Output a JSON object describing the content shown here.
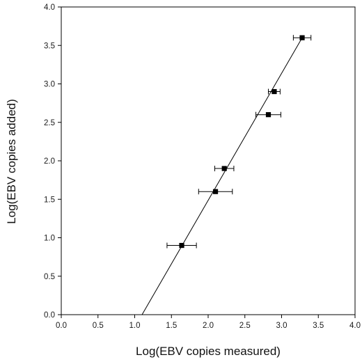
{
  "chart_data": {
    "type": "scatter",
    "title": "",
    "xlabel": "Log(EBV copies measured)",
    "ylabel": "Log(EBV copies added)",
    "xlim": [
      0.0,
      4.0
    ],
    "ylim": [
      0.0,
      4.0
    ],
    "x_ticks": [
      "0.0",
      "0.5",
      "1.0",
      "1.5",
      "2.0",
      "2.5",
      "3.0",
      "3.5",
      "4.0"
    ],
    "y_ticks": [
      "0.0",
      "0.5",
      "1.0",
      "1.5",
      "2.0",
      "2.5",
      "3.0",
      "3.5",
      "4.0"
    ],
    "grid": false,
    "legend": "none",
    "marker": "square",
    "marker_color": "#000000",
    "line_color": "#000000",
    "points": [
      {
        "x": 1.64,
        "y": 0.9,
        "x_err": 0.2
      },
      {
        "x": 2.1,
        "y": 1.6,
        "x_err": 0.23
      },
      {
        "x": 2.22,
        "y": 1.9,
        "x_err": 0.13
      },
      {
        "x": 2.82,
        "y": 2.6,
        "x_err": 0.17
      },
      {
        "x": 2.9,
        "y": 2.9,
        "x_err": 0.08
      },
      {
        "x": 3.28,
        "y": 3.6,
        "x_err": 0.12
      }
    ],
    "fit_line": {
      "x_start": 1.1,
      "y_start": 0.0,
      "x_end": 3.28,
      "y_end": 3.6
    }
  }
}
